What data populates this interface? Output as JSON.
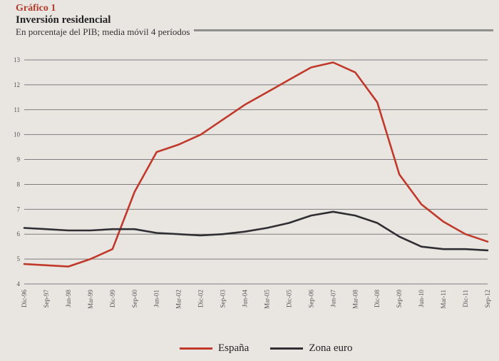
{
  "header": {
    "fig_label": "Gráfico 1",
    "title": "Inversión residencial",
    "subtitle": "En porcentaje del PIB; media móvil 4 períodos"
  },
  "colors": {
    "espana": "#c0392b",
    "zona_euro": "#2e2e33",
    "grid": "#7d7d7d"
  },
  "chart_data": {
    "type": "line",
    "title": "Inversión residencial",
    "subtitle": "En porcentaje del PIB; media móvil 4 períodos",
    "xlabel": "",
    "ylabel": "",
    "ylim": [
      4,
      13
    ],
    "yticks": [
      4,
      5,
      6,
      7,
      8,
      9,
      10,
      11,
      12,
      13
    ],
    "grid": true,
    "legend_position": "bottom",
    "x": [
      "Dic-96",
      "Sep-97",
      "Jun-98",
      "Mar-99",
      "Dic-99",
      "Sep-00",
      "Jun-01",
      "Mar-02",
      "Dic-02",
      "Sep-03",
      "Jun-04",
      "Mar-05",
      "Dic-05",
      "Sep-06",
      "Jun-07",
      "Mar-08",
      "Dic-08",
      "Sep-09",
      "Jun-10",
      "Mar-11",
      "Dic-11",
      "Sep-12"
    ],
    "series": [
      {
        "name": "España",
        "values": [
          4.8,
          4.75,
          4.7,
          5.0,
          5.4,
          7.7,
          9.3,
          9.6,
          10.0,
          10.6,
          11.2,
          11.7,
          12.2,
          12.7,
          12.9,
          12.5,
          11.3,
          8.4,
          7.2,
          6.5,
          6.0,
          5.7
        ]
      },
      {
        "name": "Zona euro",
        "values": [
          6.25,
          6.2,
          6.15,
          6.15,
          6.2,
          6.2,
          6.05,
          6.0,
          5.95,
          6.0,
          6.1,
          6.25,
          6.45,
          6.75,
          6.9,
          6.75,
          6.45,
          5.9,
          5.5,
          5.4,
          5.4,
          5.35
        ]
      }
    ]
  }
}
